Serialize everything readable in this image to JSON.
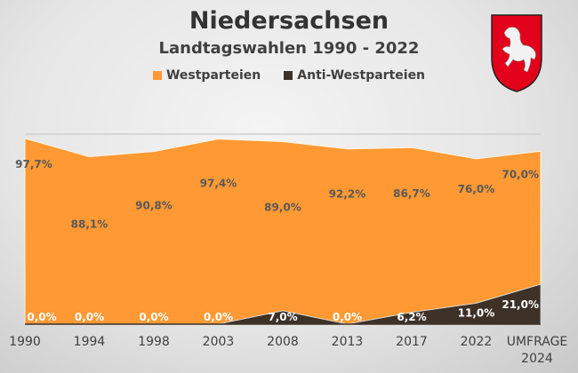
{
  "chart_data": {
    "type": "area",
    "stacked": true,
    "title": "Niedersachsen",
    "subtitle": "Landtagswahlen 1990 - 2022",
    "categories": [
      "1990",
      "1994",
      "1998",
      "2003",
      "2008",
      "2013",
      "2017",
      "2022",
      "UMFRAGE 2024"
    ],
    "series": [
      {
        "name": "Anti-Westparteien",
        "color": "#3d3128",
        "values": [
          0.0,
          0.0,
          0.0,
          0.0,
          7.0,
          0.0,
          6.2,
          11.0,
          21.0
        ],
        "labels": [
          "0,0%",
          "0,0%",
          "0,0%",
          "0,0%",
          "7,0%",
          "0,0%",
          "6,2%",
          "11,0%",
          "21,0%"
        ]
      },
      {
        "name": "Westparteien",
        "color": "#ff9933",
        "values": [
          97.7,
          88.1,
          90.8,
          97.4,
          89.0,
          92.2,
          86.7,
          76.0,
          70.0
        ],
        "labels": [
          "97,7%",
          "88,1%",
          "90,8%",
          "97,4%",
          "89,0%",
          "92,2%",
          "86,7%",
          "76,0%",
          "70,0%"
        ]
      }
    ],
    "ylim": [
      0,
      100
    ],
    "grid": true,
    "legend_position": "top",
    "xlabel": "",
    "ylabel": ""
  },
  "legend": [
    {
      "label": "Westparteien",
      "color": "#ff9933"
    },
    {
      "label": "Anti-Westparteien",
      "color": "#3d3128"
    }
  ],
  "crest": {
    "icon": "lower-saxony-horse-crest-icon",
    "color": "#e2001a"
  }
}
